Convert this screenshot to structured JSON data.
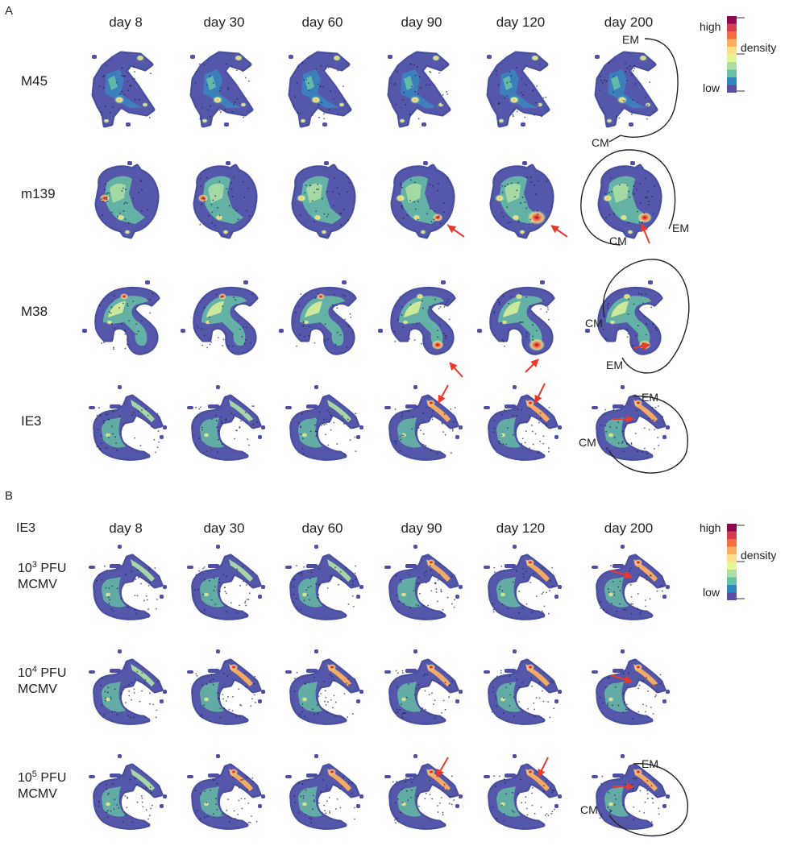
{
  "panel_a": {
    "label": "A",
    "days": [
      "day 8",
      "day 30",
      "day 60",
      "day 90",
      "day 120",
      "day 200"
    ],
    "rows": [
      "M45",
      "m139",
      "M38",
      "IE3"
    ],
    "legend": {
      "high": "high",
      "title": "density",
      "low": "low"
    },
    "annotations": {
      "em": "EM",
      "cm": "CM"
    }
  },
  "panel_b": {
    "label": "B",
    "corner_label": "IE3",
    "days": [
      "day 8",
      "day 30",
      "day 60",
      "day 90",
      "day 120",
      "day 200"
    ],
    "rows": [
      {
        "base": "10",
        "exp": "3",
        "suffix": " PFU",
        "line2": "MCMV"
      },
      {
        "base": "10",
        "exp": "4",
        "suffix": " PFU",
        "line2": "MCMV"
      },
      {
        "base": "10",
        "exp": "5",
        "suffix": " PFU",
        "line2": "MCMV"
      }
    ],
    "legend": {
      "high": "high",
      "title": "density",
      "low": "low"
    },
    "annotations": {
      "em": "EM",
      "cm": "CM"
    }
  },
  "colors": {
    "scale": [
      "#8b0a50",
      "#d53e4f",
      "#f46d43",
      "#fdae61",
      "#fee08b",
      "#e6f598",
      "#abdda4",
      "#66c2a5",
      "#3288bd",
      "#5e4fa2"
    ],
    "outline": "#4b4fa0",
    "arrow": "#e8392c",
    "ink": "#222222"
  }
}
